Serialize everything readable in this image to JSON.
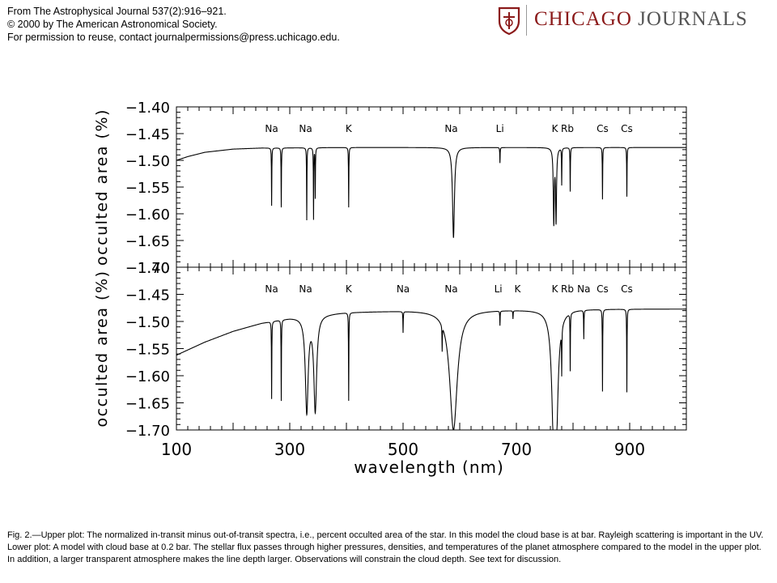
{
  "header": {
    "line1": "From The Astrophysical Journal 537(2):916–921.",
    "line2": "© 2000 by The American Astronomical Society.",
    "line3": "For permission to reuse, contact journalpermissions@press.uchicago.edu."
  },
  "logo": {
    "part1": "CHICAGO",
    "part2": " JOURNALS",
    "accent": "#8b1a1a"
  },
  "caption": "Fig. 2.—Upper plot: The normalized in-transit minus out-of-transit spectra, i.e., percent occulted area of the star. In this model the cloud base is at bar. Rayleigh scattering is important in the UV. Lower plot: A model with cloud base at 0.2 bar. The stellar flux passes through higher pressures, densities, and temperatures of the planet atmosphere compared to the model in the upper plot. In addition, a larger transparent atmosphere makes the line depth larger. Observations will constrain the cloud depth. See text for discussion.",
  "chart_data": [
    {
      "type": "line",
      "panel": "upper",
      "xlabel": "",
      "ylabel": "occulted area (%)",
      "xlim": [
        100,
        1000
      ],
      "ylim": [
        -1.7,
        -1.4
      ],
      "yticks": [
        "-1.40",
        "-1.45",
        "-1.50",
        "-1.55",
        "-1.60",
        "-1.65",
        "-1.70"
      ],
      "continuum": [
        [
          100,
          -1.5
        ],
        [
          120,
          -1.493
        ],
        [
          150,
          -1.485
        ],
        [
          200,
          -1.479
        ],
        [
          250,
          -1.477
        ],
        [
          400,
          -1.476
        ],
        [
          1000,
          -1.476
        ]
      ],
      "lines": [
        {
          "label": "Na",
          "x": 268,
          "depth": -1.585,
          "width": 0
        },
        {
          "label": "Na",
          "x": 285,
          "depth": -1.588,
          "width": 0
        },
        {
          "label": "Na",
          "x": 330,
          "depth": -1.612,
          "width": 0
        },
        {
          "label": "",
          "x": 342,
          "depth": -1.61,
          "width": 0
        },
        {
          "label": "",
          "x": 345,
          "depth": -1.57,
          "width": 0
        },
        {
          "label": "K",
          "x": 404,
          "depth": -1.588,
          "width": 0
        },
        {
          "label": "Na",
          "x": 589,
          "depth": -1.645,
          "width": 2
        },
        {
          "label": "Li",
          "x": 671,
          "depth": -1.505,
          "width": 0
        },
        {
          "label": "K",
          "x": 766,
          "depth": -1.615,
          "width": 1
        },
        {
          "label": "",
          "x": 770,
          "depth": -1.612,
          "width": 1
        },
        {
          "label": "Rb",
          "x": 780,
          "depth": -1.545,
          "width": 0
        },
        {
          "label": "",
          "x": 795,
          "depth": -1.558,
          "width": 0
        },
        {
          "label": "Cs",
          "x": 852,
          "depth": -1.573,
          "width": 0
        },
        {
          "label": "Cs",
          "x": 895,
          "depth": -1.568,
          "width": 0
        }
      ],
      "labels": [
        {
          "text": "Na",
          "x": 268
        },
        {
          "text": "Na",
          "x": 328
        },
        {
          "text": "K",
          "x": 404
        },
        {
          "text": "Na",
          "x": 585
        },
        {
          "text": "Li",
          "x": 671
        },
        {
          "text": "K",
          "x": 768
        },
        {
          "text": "Rb",
          "x": 790
        },
        {
          "text": "Cs",
          "x": 852
        },
        {
          "text": "Cs",
          "x": 895
        }
      ]
    },
    {
      "type": "line",
      "panel": "lower",
      "xlabel": "wavelength (nm)",
      "ylabel": "occulted area (%)",
      "xlim": [
        100,
        1000
      ],
      "ylim": [
        -1.7,
        -1.4
      ],
      "xticks": [
        "100",
        "300",
        "500",
        "700",
        "900"
      ],
      "yticks": [
        "-1.40",
        "-1.45",
        "-1.50",
        "-1.55",
        "-1.60",
        "-1.65",
        "-1.70"
      ],
      "continuum": [
        [
          100,
          -1.562
        ],
        [
          150,
          -1.538
        ],
        [
          200,
          -1.518
        ],
        [
          250,
          -1.503
        ],
        [
          300,
          -1.493
        ],
        [
          350,
          -1.487
        ],
        [
          400,
          -1.483
        ],
        [
          500,
          -1.48
        ],
        [
          600,
          -1.479
        ],
        [
          700,
          -1.478
        ],
        [
          800,
          -1.477
        ],
        [
          1000,
          -1.477
        ]
      ],
      "lines": [
        {
          "label": "Na",
          "x": 268,
          "depth": -1.642,
          "width": 0
        },
        {
          "label": "Na",
          "x": 285,
          "depth": -1.645,
          "width": 0
        },
        {
          "label": "Na",
          "x": 330,
          "depth": -1.665,
          "width": 3
        },
        {
          "label": "",
          "x": 345,
          "depth": -1.662,
          "width": 3
        },
        {
          "label": "K",
          "x": 404,
          "depth": -1.645,
          "width": 0
        },
        {
          "label": "Na",
          "x": 500,
          "depth": -1.519,
          "width": 0
        },
        {
          "label": "",
          "x": 569,
          "depth": -1.525,
          "width": 0
        },
        {
          "label": "Na",
          "x": 589,
          "depth": -1.7,
          "width": 8
        },
        {
          "label": "Li",
          "x": 671,
          "depth": -1.505,
          "width": 0
        },
        {
          "label": "K",
          "x": 694,
          "depth": -1.493,
          "width": 0
        },
        {
          "label": "K",
          "x": 766,
          "depth": -1.67,
          "width": 4
        },
        {
          "label": "",
          "x": 770,
          "depth": -1.668,
          "width": 4
        },
        {
          "label": "Rb",
          "x": 780,
          "depth": -1.56,
          "width": 0
        },
        {
          "label": "",
          "x": 795,
          "depth": -1.583,
          "width": 0
        },
        {
          "label": "Na",
          "x": 819,
          "depth": -1.53,
          "width": 0
        },
        {
          "label": "Cs",
          "x": 852,
          "depth": -1.628,
          "width": 0
        },
        {
          "label": "Cs",
          "x": 895,
          "depth": -1.63,
          "width": 0
        }
      ],
      "labels": [
        {
          "text": "Na",
          "x": 268
        },
        {
          "text": "Na",
          "x": 328
        },
        {
          "text": "K",
          "x": 404
        },
        {
          "text": "Na",
          "x": 500
        },
        {
          "text": "Na",
          "x": 585
        },
        {
          "text": "Li",
          "x": 668
        },
        {
          "text": "K",
          "x": 702
        },
        {
          "text": "K",
          "x": 768
        },
        {
          "text": "Rb",
          "x": 790
        },
        {
          "text": "Na",
          "x": 819
        },
        {
          "text": "Cs",
          "x": 852
        },
        {
          "text": "Cs",
          "x": 895
        }
      ]
    }
  ]
}
